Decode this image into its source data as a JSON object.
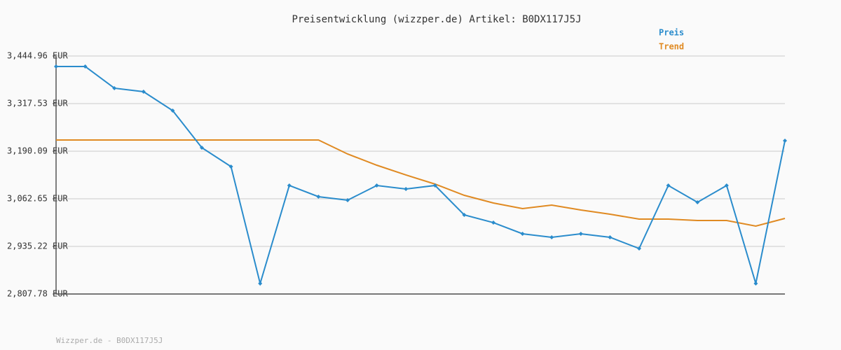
{
  "chart_data": {
    "type": "line",
    "title": "Preisentwicklung (wizzper.de) Artikel: B0DX117J5J",
    "footer": "Wizzper.de - B0DX117J5J",
    "series": [
      {
        "name": "Preis",
        "color": "#2a8ccc",
        "markers": true,
        "values": [
          3416.9,
          3416.9,
          3358.8,
          3349.4,
          3298.8,
          3199.5,
          3148.9,
          2835.9,
          3098.3,
          3068.3,
          3058.9,
          3098.3,
          3088.9,
          3098.3,
          3019.6,
          2998.9,
          2969.0,
          2959.6,
          2969.0,
          2959.6,
          2929.6,
          3098.3,
          3053.3,
          3098.3,
          2835.9,
          3218.2
        ]
      },
      {
        "name": "Trend",
        "color": "#e08a22",
        "markers": false,
        "values": [
          3220.1,
          3220.1,
          3220.1,
          3220.1,
          3220.1,
          3220.1,
          3220.1,
          3220.1,
          3220.1,
          3220.1,
          3182.6,
          3152.6,
          3126.4,
          3102.0,
          3072.0,
          3051.4,
          3036.4,
          3045.8,
          3032.7,
          3021.4,
          3008.3,
          3008.3,
          3004.6,
          3004.6,
          2989.6,
          3010.2
        ]
      }
    ],
    "ylim": [
      2807.78,
      3444.96
    ],
    "yticks": [
      {
        "value": 2807.78,
        "label": "2,807.78 EUR"
      },
      {
        "value": 2935.22,
        "label": "2,935.22 EUR"
      },
      {
        "value": 3062.65,
        "label": "3,062.65 EUR"
      },
      {
        "value": 3190.09,
        "label": "3,190.09 EUR"
      },
      {
        "value": 3317.53,
        "label": "3,317.53 EUR"
      },
      {
        "value": 3444.96,
        "label": "3,444.96 EUR"
      }
    ],
    "grid": true,
    "legend": "top-right"
  }
}
